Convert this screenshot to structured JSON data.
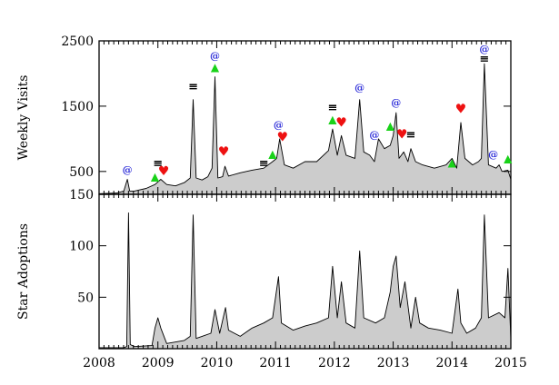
{
  "chart_data": [
    {
      "type": "area",
      "ylabel": "Weekly Visits",
      "xlim": [
        2008,
        2015
      ],
      "ylim": [
        150,
        2500
      ],
      "yticks": [
        500,
        1500,
        2500
      ],
      "xticks": [
        2008,
        2009,
        2010,
        2011,
        2012,
        2013,
        2014,
        2015
      ],
      "x": [
        2008.0,
        2008.3,
        2008.42,
        2008.48,
        2008.52,
        2008.6,
        2008.8,
        2008.95,
        2009.05,
        2009.15,
        2009.3,
        2009.45,
        2009.55,
        2009.6,
        2009.65,
        2009.75,
        2009.85,
        2009.92,
        2009.97,
        2010.02,
        2010.1,
        2010.14,
        2010.2,
        2010.4,
        2010.6,
        2010.8,
        2010.95,
        2011.02,
        2011.07,
        2011.15,
        2011.3,
        2011.5,
        2011.7,
        2011.9,
        2011.97,
        2012.05,
        2012.12,
        2012.2,
        2012.35,
        2012.43,
        2012.5,
        2012.6,
        2012.68,
        2012.75,
        2012.85,
        2012.95,
        2013.0,
        2013.05,
        2013.1,
        2013.18,
        2013.25,
        2013.3,
        2013.38,
        2013.5,
        2013.7,
        2013.9,
        2014.0,
        2014.08,
        2014.15,
        2014.22,
        2014.35,
        2014.45,
        2014.5,
        2014.55,
        2014.62,
        2014.75,
        2014.8,
        2014.85,
        2014.95,
        2015.0
      ],
      "values": [
        160,
        170,
        200,
        380,
        200,
        200,
        240,
        300,
        380,
        300,
        280,
        330,
        400,
        1600,
        400,
        370,
        420,
        550,
        1950,
        400,
        420,
        580,
        430,
        480,
        520,
        550,
        650,
        700,
        1000,
        600,
        550,
        650,
        650,
        820,
        1150,
        750,
        1050,
        750,
        700,
        1600,
        800,
        750,
        650,
        1000,
        850,
        900,
        1050,
        1400,
        700,
        800,
        650,
        850,
        650,
        600,
        550,
        600,
        700,
        550,
        1250,
        700,
        600,
        650,
        700,
        2150,
        600,
        550,
        600,
        500,
        520,
        380
      ],
      "markers": [
        {
          "x": 2008.48,
          "y": 530,
          "symbol": "@",
          "color": "#2a2ad8"
        },
        {
          "x": 2008.95,
          "y": 420,
          "symbol": "▲",
          "color": "#19d219"
        },
        {
          "x": 2009.0,
          "y": 620,
          "symbol": "≡",
          "color": "#000000"
        },
        {
          "x": 2009.1,
          "y": 500,
          "symbol": "♥",
          "color": "#ee1111"
        },
        {
          "x": 2009.6,
          "y": 1800,
          "symbol": "≡",
          "color": "#000000"
        },
        {
          "x": 2009.97,
          "y": 2100,
          "symbol": "▲",
          "color": "#19d219"
        },
        {
          "x": 2009.97,
          "y": 2280,
          "symbol": "@",
          "color": "#2a2ad8"
        },
        {
          "x": 2010.12,
          "y": 800,
          "symbol": "♥",
          "color": "#ee1111"
        },
        {
          "x": 2010.8,
          "y": 620,
          "symbol": "≡",
          "color": "#000000"
        },
        {
          "x": 2010.95,
          "y": 770,
          "symbol": "▲",
          "color": "#19d219"
        },
        {
          "x": 2011.05,
          "y": 1220,
          "symbol": "@",
          "color": "#2a2ad8"
        },
        {
          "x": 2011.12,
          "y": 1020,
          "symbol": "♥",
          "color": "#ee1111"
        },
        {
          "x": 2011.97,
          "y": 1300,
          "symbol": "▲",
          "color": "#19d219"
        },
        {
          "x": 2011.97,
          "y": 1480,
          "symbol": "≡",
          "color": "#000000"
        },
        {
          "x": 2012.12,
          "y": 1240,
          "symbol": "♥",
          "color": "#ee1111"
        },
        {
          "x": 2012.43,
          "y": 1790,
          "symbol": "@",
          "color": "#2a2ad8"
        },
        {
          "x": 2012.68,
          "y": 1070,
          "symbol": "@",
          "color": "#2a2ad8"
        },
        {
          "x": 2012.95,
          "y": 1200,
          "symbol": "▲",
          "color": "#19d219"
        },
        {
          "x": 2013.05,
          "y": 1560,
          "symbol": "@",
          "color": "#2a2ad8"
        },
        {
          "x": 2013.15,
          "y": 1060,
          "symbol": "♥",
          "color": "#ee1111"
        },
        {
          "x": 2013.3,
          "y": 1060,
          "symbol": "≡",
          "color": "#000000"
        },
        {
          "x": 2014.0,
          "y": 640,
          "symbol": "▲",
          "color": "#19d219"
        },
        {
          "x": 2014.15,
          "y": 1450,
          "symbol": "♥",
          "color": "#ee1111"
        },
        {
          "x": 2014.55,
          "y": 2380,
          "symbol": "@",
          "color": "#2a2ad8"
        },
        {
          "x": 2014.55,
          "y": 2220,
          "symbol": "≡",
          "color": "#000000"
        },
        {
          "x": 2014.7,
          "y": 770,
          "symbol": "@",
          "color": "#2a2ad8"
        },
        {
          "x": 2014.95,
          "y": 700,
          "symbol": "▲",
          "color": "#19d219"
        }
      ]
    },
    {
      "type": "area",
      "ylabel": "Star Adoptions",
      "xlabel": "",
      "xlim": [
        2008,
        2015
      ],
      "ylim": [
        0,
        150
      ],
      "yticks": [
        50,
        100,
        150
      ],
      "xticks": [
        2008,
        2009,
        2010,
        2011,
        2012,
        2013,
        2014,
        2015
      ],
      "x": [
        2008.0,
        2008.42,
        2008.47,
        2008.5,
        2008.53,
        2008.6,
        2008.9,
        2008.95,
        2009.0,
        2009.05,
        2009.15,
        2009.45,
        2009.55,
        2009.6,
        2009.65,
        2009.75,
        2009.9,
        2009.97,
        2010.05,
        2010.15,
        2010.2,
        2010.4,
        2010.6,
        2010.8,
        2010.95,
        2011.05,
        2011.1,
        2011.3,
        2011.5,
        2011.7,
        2011.9,
        2011.97,
        2012.05,
        2012.12,
        2012.2,
        2012.35,
        2012.43,
        2012.5,
        2012.7,
        2012.85,
        2012.95,
        2013.0,
        2013.05,
        2013.12,
        2013.2,
        2013.3,
        2013.38,
        2013.45,
        2013.6,
        2013.8,
        2014.0,
        2014.1,
        2014.15,
        2014.25,
        2014.4,
        2014.5,
        2014.55,
        2014.62,
        2014.8,
        2014.9,
        2014.95,
        2015.0
      ],
      "values": [
        1,
        1,
        2,
        132,
        4,
        2,
        3,
        20,
        30,
        20,
        5,
        8,
        12,
        130,
        10,
        12,
        15,
        38,
        15,
        40,
        18,
        12,
        20,
        25,
        30,
        70,
        25,
        18,
        22,
        25,
        30,
        80,
        30,
        65,
        25,
        20,
        95,
        30,
        25,
        30,
        55,
        80,
        90,
        40,
        65,
        20,
        50,
        25,
        20,
        18,
        15,
        58,
        25,
        15,
        20,
        30,
        130,
        30,
        35,
        30,
        78,
        10
      ]
    }
  ]
}
